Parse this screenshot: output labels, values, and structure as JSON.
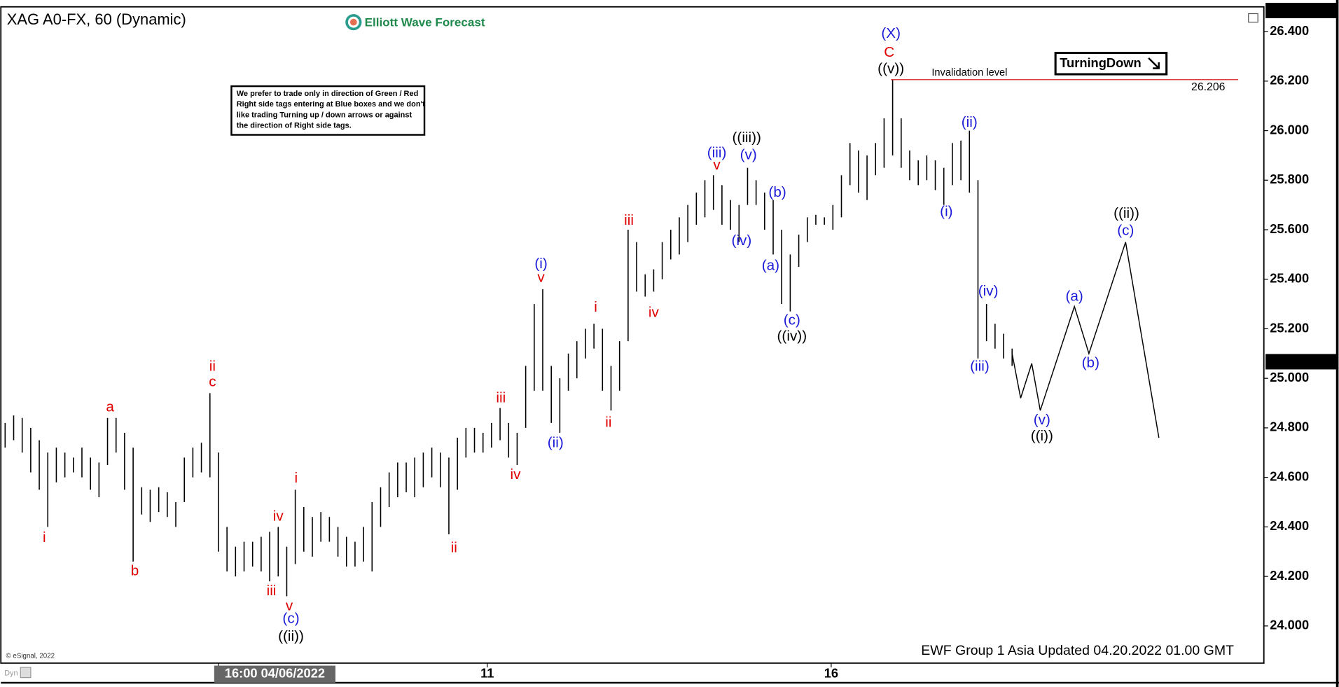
{
  "chart_data": {
    "type": "ohlc",
    "title": "XAG A0-FX, 60 (Dynamic)",
    "logo": "Elliott Wave Forecast",
    "note": [
      "We prefer to trade only in direction of Green / Red",
      "Right side tags entering at Blue boxes and we don't",
      "like trading Turning up / down arrows or against",
      "the direction of Right side tags."
    ],
    "tag": "TurningDown",
    "footer": "EWF Group 1 Asia Updated 04.20.2022 01.00 GMT",
    "copyright": "© eSignal, 2022",
    "corner": "Dyn",
    "xlim": [
      -0.5,
      147.5
    ],
    "ylim": [
      23.85,
      26.5
    ],
    "xticks": [
      {
        "value": 25,
        "label": "16:00 04/06/2022"
      },
      {
        "value": 56.5,
        "label": "11"
      },
      {
        "value": 96.8,
        "label": "16"
      }
    ],
    "yticks": [
      {
        "value": 24.0,
        "label": "24.000"
      },
      {
        "value": 24.2,
        "label": "24.200"
      },
      {
        "value": 24.4,
        "label": "24.400"
      },
      {
        "value": 24.6,
        "label": "24.600"
      },
      {
        "value": 24.8,
        "label": "24.800"
      },
      {
        "value": 25.0,
        "label": "25.000"
      },
      {
        "value": 25.2,
        "label": "25.200"
      },
      {
        "value": 25.4,
        "label": "25.400"
      },
      {
        "value": 25.6,
        "label": "25.600"
      },
      {
        "value": 25.8,
        "label": "25.800"
      },
      {
        "value": 26.0,
        "label": "26.000"
      },
      {
        "value": 26.2,
        "label": "26.200"
      },
      {
        "value": 26.4,
        "label": "26.400"
      }
    ],
    "price_tags": [
      {
        "value": 26.485,
        "label": "26.485"
      },
      {
        "value": 25.067,
        "label": "25.067"
      }
    ],
    "color": "#000000",
    "x": [
      0,
      1,
      2,
      3,
      4,
      5,
      6,
      7,
      8,
      9,
      10,
      11,
      12,
      13,
      14,
      15,
      16,
      17,
      18,
      19,
      20,
      21,
      22,
      23,
      24,
      25,
      26,
      27,
      28,
      29,
      30,
      31,
      32,
      33,
      34,
      35,
      36,
      37,
      38,
      39,
      40,
      41,
      42,
      43,
      44,
      45,
      46,
      47,
      48,
      49,
      50,
      51,
      52,
      53,
      54,
      55,
      56,
      57,
      58,
      59,
      60,
      61,
      62,
      63,
      64,
      65,
      66,
      67,
      68,
      69,
      70,
      71,
      72,
      73,
      74,
      75,
      76,
      77,
      78,
      79,
      80,
      81,
      82,
      83,
      84,
      85,
      86,
      87,
      88,
      89,
      90,
      91,
      92,
      93,
      94,
      95,
      96,
      97,
      98,
      99,
      100,
      101,
      102,
      103,
      104,
      105,
      106,
      107,
      108,
      109,
      110,
      111,
      112,
      113,
      114,
      115,
      116,
      117,
      118
    ],
    "highs": [
      24.82,
      24.85,
      24.84,
      24.8,
      24.75,
      24.7,
      24.72,
      24.7,
      24.68,
      24.72,
      24.68,
      24.66,
      24.84,
      24.84,
      24.78,
      24.72,
      24.56,
      24.55,
      24.56,
      24.54,
      24.5,
      24.68,
      24.72,
      24.74,
      24.94,
      24.7,
      24.4,
      24.32,
      24.34,
      24.34,
      24.36,
      24.38,
      24.4,
      24.32,
      24.55,
      24.48,
      24.44,
      24.46,
      24.44,
      24.4,
      24.36,
      24.34,
      24.4,
      24.5,
      24.56,
      24.62,
      24.66,
      24.66,
      24.68,
      24.7,
      24.72,
      24.7,
      24.68,
      24.76,
      24.8,
      24.8,
      24.78,
      24.82,
      24.88,
      24.82,
      24.78,
      25.05,
      25.3,
      25.36,
      25.05,
      25.0,
      25.1,
      25.15,
      25.2,
      25.22,
      25.2,
      25.05,
      25.15,
      25.6,
      25.55,
      25.42,
      25.44,
      25.55,
      25.6,
      25.65,
      25.7,
      25.75,
      25.8,
      25.82,
      25.78,
      25.72,
      25.7,
      25.85,
      25.8,
      25.75,
      25.72,
      25.6,
      25.5,
      25.58,
      25.65,
      25.66,
      25.65,
      25.7,
      25.82,
      25.95,
      25.92,
      25.9,
      25.95,
      26.05,
      26.206,
      26.05,
      25.92,
      25.88,
      25.9,
      25.88,
      25.85,
      25.95,
      25.96,
      26.0,
      25.8,
      25.3,
      25.22,
      25.18,
      25.12
    ],
    "lows": [
      24.72,
      24.75,
      24.7,
      24.62,
      24.55,
      24.4,
      24.58,
      24.6,
      24.62,
      24.6,
      24.55,
      24.52,
      24.65,
      24.7,
      24.55,
      24.26,
      24.45,
      24.42,
      24.46,
      24.44,
      24.4,
      24.5,
      24.6,
      24.62,
      24.6,
      24.3,
      24.22,
      24.2,
      24.22,
      24.24,
      24.22,
      24.18,
      24.2,
      24.12,
      24.25,
      24.3,
      24.28,
      24.34,
      24.34,
      24.28,
      24.24,
      24.24,
      24.26,
      24.22,
      24.4,
      24.48,
      24.52,
      24.54,
      24.52,
      24.56,
      24.6,
      24.56,
      24.37,
      24.55,
      24.68,
      24.7,
      24.7,
      24.72,
      24.75,
      24.68,
      24.65,
      24.8,
      24.95,
      24.95,
      24.82,
      24.78,
      24.95,
      25.0,
      25.08,
      25.12,
      24.95,
      24.87,
      24.95,
      25.15,
      25.35,
      25.33,
      25.35,
      25.4,
      25.48,
      25.5,
      25.55,
      25.62,
      25.65,
      25.68,
      25.62,
      25.6,
      25.55,
      25.7,
      25.7,
      25.6,
      25.5,
      25.3,
      25.27,
      25.45,
      25.55,
      25.62,
      25.62,
      25.6,
      25.65,
      25.78,
      25.75,
      25.72,
      25.82,
      25.85,
      25.9,
      25.85,
      25.8,
      25.78,
      25.8,
      25.76,
      25.7,
      25.78,
      25.8,
      25.75,
      25.08,
      25.15,
      25.12,
      25.08,
      25.05
    ],
    "projection": {
      "x": [
        118,
        119,
        120.3,
        121.3,
        125.3,
        127,
        131.3,
        135.2
      ],
      "values": [
        25.1,
        24.92,
        25.06,
        24.87,
        25.29,
        25.1,
        25.55,
        24.76
      ]
    },
    "invalidation": {
      "label": "Invalidation level",
      "value": 26.206,
      "value_label": "26.206",
      "x": 103.8
    },
    "annotations": [
      {
        "text": "i",
        "x": 4.6,
        "y": 24.354,
        "color": "#e00000"
      },
      {
        "text": "a",
        "x": 12.3,
        "y": 24.881,
        "color": "#e00000"
      },
      {
        "text": "b",
        "x": 15.2,
        "y": 24.22,
        "color": "#e00000"
      },
      {
        "text": "ii",
        "x": 24.3,
        "y": 25.046,
        "color": "#e00000"
      },
      {
        "text": "c",
        "x": 24.3,
        "y": 24.984,
        "color": "#e00000"
      },
      {
        "text": "iii",
        "x": 31.2,
        "y": 24.14,
        "color": "#e00000"
      },
      {
        "text": "iv",
        "x": 32,
        "y": 24.44,
        "color": "#e00000"
      },
      {
        "text": "v",
        "x": 33.3,
        "y": 24.079,
        "color": "#e00000"
      },
      {
        "text": "(c)",
        "x": 33.5,
        "y": 24.027,
        "color": "#1a1ad8"
      },
      {
        "text": "((ii))",
        "x": 33.5,
        "y": 23.955,
        "color": "#000000"
      },
      {
        "text": "i",
        "x": 34.1,
        "y": 24.595,
        "color": "#e00000"
      },
      {
        "text": "ii",
        "x": 52.6,
        "y": 24.313,
        "color": "#e00000"
      },
      {
        "text": "iii",
        "x": 58.1,
        "y": 24.919,
        "color": "#e00000"
      },
      {
        "text": "iv",
        "x": 59.8,
        "y": 24.609,
        "color": "#e00000"
      },
      {
        "text": "(i)",
        "x": 62.8,
        "y": 25.46,
        "color": "#1a1ad8"
      },
      {
        "text": "v",
        "x": 62.8,
        "y": 25.405,
        "color": "#e00000"
      },
      {
        "text": "(ii)",
        "x": 64.5,
        "y": 24.737,
        "color": "#1a1ad8"
      },
      {
        "text": "i",
        "x": 69.2,
        "y": 25.284,
        "color": "#e00000"
      },
      {
        "text": "ii",
        "x": 70.7,
        "y": 24.819,
        "color": "#e00000"
      },
      {
        "text": "iii",
        "x": 73.1,
        "y": 25.635,
        "color": "#e00000"
      },
      {
        "text": "iv",
        "x": 76,
        "y": 25.263,
        "color": "#e00000"
      },
      {
        "text": "(iii)",
        "x": 83.4,
        "y": 25.908,
        "color": "#1a1ad8"
      },
      {
        "text": "v",
        "x": 83.4,
        "y": 25.859,
        "color": "#e00000"
      },
      {
        "text": "(iv)",
        "x": 86.3,
        "y": 25.553,
        "color": "#1a1ad8"
      },
      {
        "text": "((iii))",
        "x": 86.9,
        "y": 25.969,
        "color": "#000000"
      },
      {
        "text": "(v)",
        "x": 87.1,
        "y": 25.9,
        "color": "#1a1ad8"
      },
      {
        "text": "(b)",
        "x": 90.5,
        "y": 25.749,
        "color": "#1a1ad8"
      },
      {
        "text": "(a)",
        "x": 89.7,
        "y": 25.453,
        "color": "#1a1ad8"
      },
      {
        "text": "(c)",
        "x": 92.2,
        "y": 25.232,
        "color": "#1a1ad8"
      },
      {
        "text": "((iv))",
        "x": 92.2,
        "y": 25.167,
        "color": "#000000"
      },
      {
        "text": "(X)",
        "x": 103.8,
        "y": 26.39,
        "color": "#1a1ad8"
      },
      {
        "text": "C",
        "x": 103.6,
        "y": 26.314,
        "color": "#e00000"
      },
      {
        "text": "((v))",
        "x": 103.8,
        "y": 26.248,
        "color": "#000000"
      },
      {
        "text": "(i)",
        "x": 110.3,
        "y": 25.67,
        "color": "#1a1ad8"
      },
      {
        "text": "(ii)",
        "x": 113,
        "y": 26.031,
        "color": "#1a1ad8"
      },
      {
        "text": "(iii)",
        "x": 114.2,
        "y": 25.046,
        "color": "#1a1ad8"
      },
      {
        "text": "(iv)",
        "x": 115.2,
        "y": 25.35,
        "color": "#1a1ad8"
      },
      {
        "text": "(v)",
        "x": 121.5,
        "y": 24.83,
        "color": "#1a1ad8"
      },
      {
        "text": "((i))",
        "x": 121.5,
        "y": 24.764,
        "color": "#000000"
      },
      {
        "text": "(a)",
        "x": 125.3,
        "y": 25.329,
        "color": "#1a1ad8"
      },
      {
        "text": "(b)",
        "x": 127.2,
        "y": 25.06,
        "color": "#1a1ad8"
      },
      {
        "text": "(c)",
        "x": 131.3,
        "y": 25.594,
        "color": "#1a1ad8"
      },
      {
        "text": "((ii))",
        "x": 131.4,
        "y": 25.663,
        "color": "#000000"
      }
    ]
  }
}
